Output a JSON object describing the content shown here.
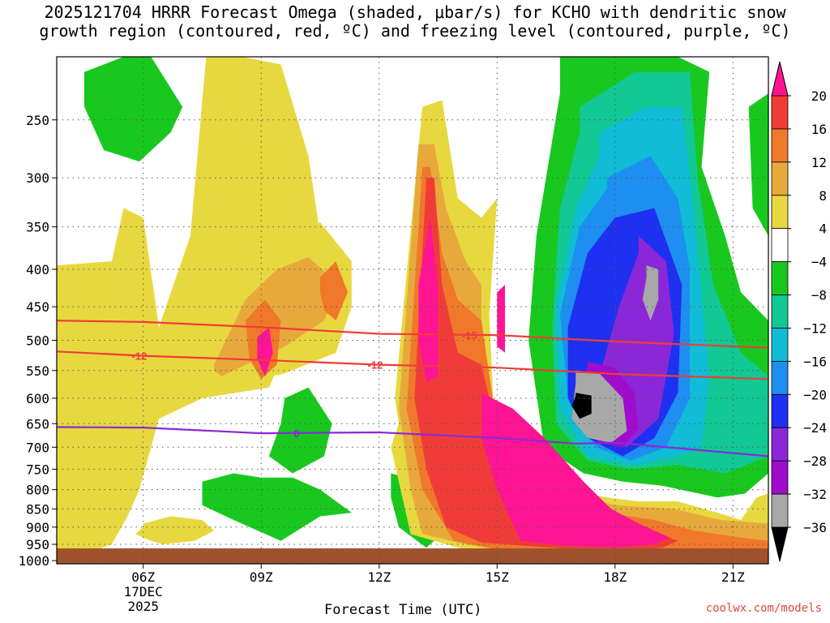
{
  "title_line1": "2025121704 HRRR Forecast Omega (shaded, μbar/s) for KCHO with dendritic snow",
  "title_line2": "growth region (contoured, red, ºC) and freezing level (contoured, purple, ºC)",
  "credit": "coolwx.com/models",
  "chart_data": {
    "type": "heatmap",
    "title": "2025121704 HRRR Forecast Omega (shaded, μbar/s) for KCHO with dendritic snow growth region (contoured, red, ºC) and freezing level (contoured, purple, ºC)",
    "xlabel": "Forecast Time (UTC)",
    "ylabel": "",
    "x_ticks": [
      "06Z",
      "09Z",
      "12Z",
      "15Z",
      "18Z",
      "21Z"
    ],
    "x_tick_date": [
      "17DEC",
      "2025"
    ],
    "xlim_hours": [
      3.8,
      21.9
    ],
    "y_ticks": [
      250,
      300,
      350,
      400,
      450,
      500,
      550,
      600,
      650,
      700,
      750,
      800,
      850,
      900,
      950,
      1000
    ],
    "ylim_hpa": [
      1010,
      205
    ],
    "y_scale": "log-pressure",
    "grid": true,
    "colorbar": {
      "labels": [
        "20",
        "16",
        "12",
        "8",
        "4",
        "−4",
        "−8",
        "−12",
        "−16",
        "−20",
        "−24",
        "−28",
        "−32",
        "−36"
      ],
      "colors": [
        "#ff1493",
        "#f03c38",
        "#f0782a",
        "#e8a93c",
        "#e8d840",
        "#ffffff",
        "#19c81e",
        "#12c894",
        "#10bcd6",
        "#1e8ef0",
        "#1e30f0",
        "#8a28d8",
        "#a00ccc",
        "#a8a8a8",
        "#000000"
      ]
    },
    "contours": [
      {
        "name": "-15",
        "color": "#f03c38",
        "x": [
          3.8,
          6,
          9,
          12,
          15,
          18,
          21.9
        ],
        "p": [
          470,
          472,
          480,
          490,
          492,
          502,
          512
        ]
      },
      {
        "name": "-12",
        "color": "#f03c38",
        "x": [
          3.8,
          6,
          9,
          12,
          15,
          18,
          21.9
        ],
        "p": [
          518,
          525,
          532,
          540,
          545,
          556,
          565
        ]
      },
      {
        "name": "0",
        "color": "#8a28d8",
        "x": [
          3.8,
          6,
          9,
          12,
          15,
          17,
          18,
          21.9
        ],
        "p": [
          657,
          658,
          670,
          668,
          680,
          692,
          690,
          720
        ]
      }
    ],
    "contour_labels": [
      {
        "text": "-12",
        "x": 5.9,
        "p": 525,
        "color": "#f03c38"
      },
      {
        "text": "-12",
        "x": 11.9,
        "p": 540,
        "color": "#f03c38"
      },
      {
        "text": "-15",
        "x": 14.3,
        "p": 492,
        "color": "#f03c38"
      },
      {
        "text": "0",
        "x": 9.9,
        "p": 670,
        "color": "#8a28d8"
      }
    ],
    "regions": [
      {
        "level": "-4",
        "color": "#19c81e",
        "x": [
          4.5,
          5.5,
          6.2,
          7,
          6.7,
          5.9,
          5.0,
          4.5
        ],
        "p": [
          215,
          205,
          205,
          240,
          260,
          285,
          275,
          240
        ]
      },
      {
        "level": "-4",
        "color": "#19c81e",
        "x": [
          5.7,
          6.2,
          6.3,
          5.9,
          5.6
        ],
        "p": [
          450,
          430,
          480,
          520,
          480
        ]
      },
      {
        "level": "-4",
        "color": "#19c81e",
        "x": [
          9.6,
          10.2,
          10.8,
          10.6,
          9.8,
          9.2,
          9.5
        ],
        "p": [
          600,
          580,
          650,
          720,
          760,
          720,
          650
        ]
      },
      {
        "level": "-4",
        "color": "#19c81e",
        "x": [
          7.5,
          8.3,
          9.0,
          9.8,
          10.5,
          11.3,
          10.5,
          9.5,
          8.3,
          7.5
        ],
        "p": [
          780,
          760,
          770,
          770,
          800,
          860,
          870,
          940,
          880,
          840
        ]
      },
      {
        "level": "-4",
        "color": "#19c81e",
        "x": [
          12.3,
          13.1,
          13.7,
          13.8,
          13.2,
          12.5,
          12.3
        ],
        "p": [
          760,
          780,
          800,
          900,
          960,
          900,
          820
        ]
      },
      {
        "level": "-4",
        "color": "#19c81e",
        "x": [
          16.6,
          18.0,
          19.6,
          20.4,
          20.2,
          20.8,
          21.2,
          21.9,
          21.9,
          21.3,
          20.6,
          19.2,
          18.2,
          17.2,
          16.2,
          15.8,
          16.0,
          16.6
        ],
        "p": [
          205,
          205,
          205,
          215,
          290,
          360,
          430,
          470,
          760,
          810,
          820,
          790,
          780,
          760,
          700,
          500,
          360,
          230
        ]
      },
      {
        "level": "-4",
        "color": "#19c81e",
        "x": [
          21.4,
          21.9,
          21.9,
          21.5
        ],
        "p": [
          240,
          230,
          360,
          330
        ]
      },
      {
        "level": "-8",
        "color": "#12c894",
        "x": [
          17.1,
          18.5,
          19.9,
          20.1,
          20.5,
          21.2,
          21.9,
          21.9,
          20.8,
          19.6,
          18.4,
          17.3,
          16.5,
          16.4,
          16.6,
          17.1
        ],
        "p": [
          240,
          215,
          215,
          300,
          420,
          520,
          560,
          720,
          760,
          740,
          750,
          730,
          650,
          480,
          330,
          260
        ]
      },
      {
        "level": "-12",
        "color": "#10bcd6",
        "x": [
          17.6,
          18.8,
          19.7,
          20.0,
          20.4,
          20.2,
          19.6,
          18.5,
          17.3,
          16.6,
          16.5,
          17.0,
          17.6
        ],
        "p": [
          260,
          240,
          240,
          330,
          560,
          700,
          720,
          740,
          720,
          620,
          450,
          330,
          280
        ]
      },
      {
        "level": "-16",
        "color": "#1e8ef0",
        "x": [
          17.8,
          18.9,
          19.6,
          19.9,
          19.9,
          19.3,
          18.4,
          17.5,
          16.8,
          16.6,
          17.1,
          17.8
        ],
        "p": [
          300,
          280,
          320,
          400,
          600,
          700,
          730,
          700,
          600,
          460,
          350,
          310
        ]
      },
      {
        "level": "-20",
        "color": "#1e30f0",
        "x": [
          18.0,
          19.0,
          19.7,
          19.6,
          19.0,
          18.2,
          17.3,
          16.8,
          16.8,
          17.3,
          18.0
        ],
        "p": [
          340,
          330,
          420,
          590,
          680,
          720,
          680,
          600,
          480,
          380,
          340
        ]
      },
      {
        "level": "-24",
        "color": "#8a28d8",
        "x": [
          18.6,
          19.3,
          19.5,
          19.1,
          18.3,
          17.5,
          17.6,
          18.1,
          18.6
        ],
        "p": [
          360,
          390,
          490,
          640,
          700,
          680,
          560,
          450,
          380
        ]
      },
      {
        "level": "-28",
        "color": "#a00ccc",
        "x": [
          17.3,
          18.0,
          18.5,
          18.6,
          18.2,
          17.6,
          17.1,
          17.0,
          17.3
        ],
        "p": [
          535,
          545,
          590,
          660,
          700,
          690,
          650,
          580,
          545
        ]
      },
      {
        "level": "-32",
        "color": "#a8a8a8",
        "x": [
          17.0,
          17.6,
          18.2,
          18.3,
          17.9,
          17.3,
          16.9,
          17.0
        ],
        "p": [
          550,
          555,
          600,
          665,
          690,
          680,
          640,
          570
        ]
      },
      {
        "level": "-32",
        "color": "#a8a8a8",
        "x": [
          18.8,
          19.1,
          19.1,
          18.9,
          18.7,
          18.8
        ],
        "p": [
          395,
          400,
          440,
          470,
          440,
          410
        ]
      },
      {
        "level": "-36",
        "color": "#000000",
        "x": [
          17.0,
          17.4,
          17.4,
          17.1,
          16.9,
          17.0
        ],
        "p": [
          590,
          595,
          630,
          640,
          615,
          595
        ]
      },
      {
        "level": "4",
        "color": "#e8d840",
        "x": [
          3.8,
          5.2,
          5.5,
          6.0,
          6.4,
          7.2,
          7.6,
          7.6,
          8.5,
          9.5,
          10.2,
          10.6,
          9.2,
          7.5,
          6.4,
          5.9,
          5.6,
          5.2,
          4.5,
          3.8
        ],
        "p": [
          395,
          390,
          330,
          340,
          480,
          360,
          205,
          205,
          205,
          210,
          280,
          390,
          580,
          600,
          640,
          800,
          870,
          950,
          980,
          985
        ]
      },
      {
        "level": "4",
        "color": "#e8d840",
        "x": [
          7.0,
          8.3,
          9.5,
          10.5,
          11.3,
          11.3,
          10.9,
          9.6,
          8.0,
          7.2,
          7.0
        ],
        "p": [
          560,
          430,
          370,
          345,
          390,
          450,
          520,
          555,
          580,
          600,
          580
        ]
      },
      {
        "level": "4",
        "color": "#e8d840",
        "x": [
          6.0,
          6.7,
          7.5,
          7.8,
          7.3,
          6.5,
          6.2,
          5.8,
          6.0
        ],
        "p": [
          890,
          870,
          880,
          910,
          940,
          950,
          940,
          920,
          900
        ]
      },
      {
        "level": "4",
        "color": "#e8d840",
        "x": [
          12.4,
          13.1,
          13.6,
          14.0,
          14.6,
          15.0,
          14.8,
          14.9,
          15.6,
          16.8,
          17.8,
          18.6,
          19.6,
          20.6,
          21.2,
          21.6,
          21.9,
          21.9,
          20.5,
          19.0,
          17.8,
          16.5,
          15.0,
          14.0,
          12.8,
          12.5,
          12.3,
          12.5
        ],
        "p": [
          600,
          240,
          235,
          320,
          340,
          320,
          460,
          600,
          720,
          800,
          820,
          830,
          830,
          860,
          880,
          820,
          810,
          1000,
          1000,
          1000,
          995,
          990,
          975,
          960,
          920,
          780,
          700,
          650
        ]
      },
      {
        "level": "8",
        "color": "#e8a93c",
        "x": [
          12.5,
          13.0,
          13.4,
          13.7,
          14.2,
          14.6,
          14.6,
          15.0,
          15.6,
          16.8,
          18.0,
          19.5,
          20.7,
          21.9,
          21.9,
          20.8,
          19.4,
          18.0,
          16.6,
          15.2,
          14.2,
          13.1,
          12.8
        ],
        "p": [
          620,
          270,
          270,
          330,
          390,
          420,
          560,
          620,
          730,
          810,
          840,
          850,
          880,
          890,
          990,
          995,
          995,
          990,
          985,
          970,
          950,
          920,
          800
        ]
      },
      {
        "level": "8",
        "color": "#e8a93c",
        "x": [
          7.8,
          8.6,
          9.4,
          10.2,
          11.0,
          10.6,
          9.6,
          8.6,
          8.0,
          7.8
        ],
        "p": [
          540,
          440,
          400,
          385,
          420,
          470,
          510,
          540,
          560,
          550
        ]
      },
      {
        "level": "12",
        "color": "#f0782a",
        "x": [
          12.7,
          13.1,
          13.3,
          13.6,
          14.0,
          14.6,
          15.0,
          15.8,
          16.8,
          17.8,
          19.0,
          20.0,
          21.2,
          21.9,
          21.9,
          20.4,
          19.0,
          17.6,
          16.3,
          15.0,
          13.9,
          13.1
        ],
        "p": [
          620,
          290,
          290,
          380,
          440,
          470,
          660,
          760,
          830,
          860,
          880,
          910,
          930,
          940,
          980,
          985,
          985,
          980,
          975,
          965,
          940,
          800
        ]
      },
      {
        "level": "12",
        "color": "#f0782a",
        "x": [
          8.6,
          9.1,
          9.5,
          9.4,
          9.0,
          8.7
        ],
        "p": [
          470,
          440,
          470,
          540,
          565,
          530
        ]
      },
      {
        "level": "12",
        "color": "#f0782a",
        "x": [
          10.5,
          10.9,
          11.2,
          10.9,
          10.6,
          10.5
        ],
        "p": [
          410,
          390,
          430,
          470,
          455,
          430
        ]
      },
      {
        "level": "16",
        "color": "#f03c38",
        "x": [
          12.9,
          13.2,
          13.4,
          13.6,
          14.0,
          14.6,
          15.1,
          15.8,
          16.8,
          17.8,
          18.8,
          19.6,
          19.2,
          18.2,
          17.0,
          15.8,
          14.6,
          13.7,
          13.2
        ],
        "p": [
          600,
          300,
          300,
          420,
          520,
          540,
          700,
          800,
          860,
          890,
          905,
          940,
          960,
          970,
          965,
          955,
          945,
          900,
          750
        ]
      },
      {
        "level": "20",
        "color": "#ff1493",
        "x": [
          13.0,
          13.3,
          13.5,
          13.5,
          13.2,
          13.0
        ],
        "p": [
          420,
          340,
          420,
          560,
          570,
          500
        ]
      },
      {
        "level": "20",
        "color": "#ff1493",
        "x": [
          14.6,
          15.4,
          16.2,
          17.2,
          17.9,
          18.6,
          19.4,
          19.0,
          18.0,
          16.8,
          15.6,
          15.0,
          14.6
        ],
        "p": [
          590,
          620,
          680,
          780,
          850,
          890,
          930,
          950,
          960,
          955,
          940,
          800,
          680
        ]
      },
      {
        "level": "20",
        "color": "#ff1493",
        "x": [
          8.9,
          9.2,
          9.3,
          9.1,
          8.9
        ],
        "p": [
          495,
          480,
          520,
          560,
          530
        ]
      },
      {
        "level": "20",
        "color": "#ff1493",
        "x": [
          15.0,
          15.2,
          15.2,
          15.0
        ],
        "p": [
          430,
          420,
          520,
          510
        ]
      }
    ]
  }
}
